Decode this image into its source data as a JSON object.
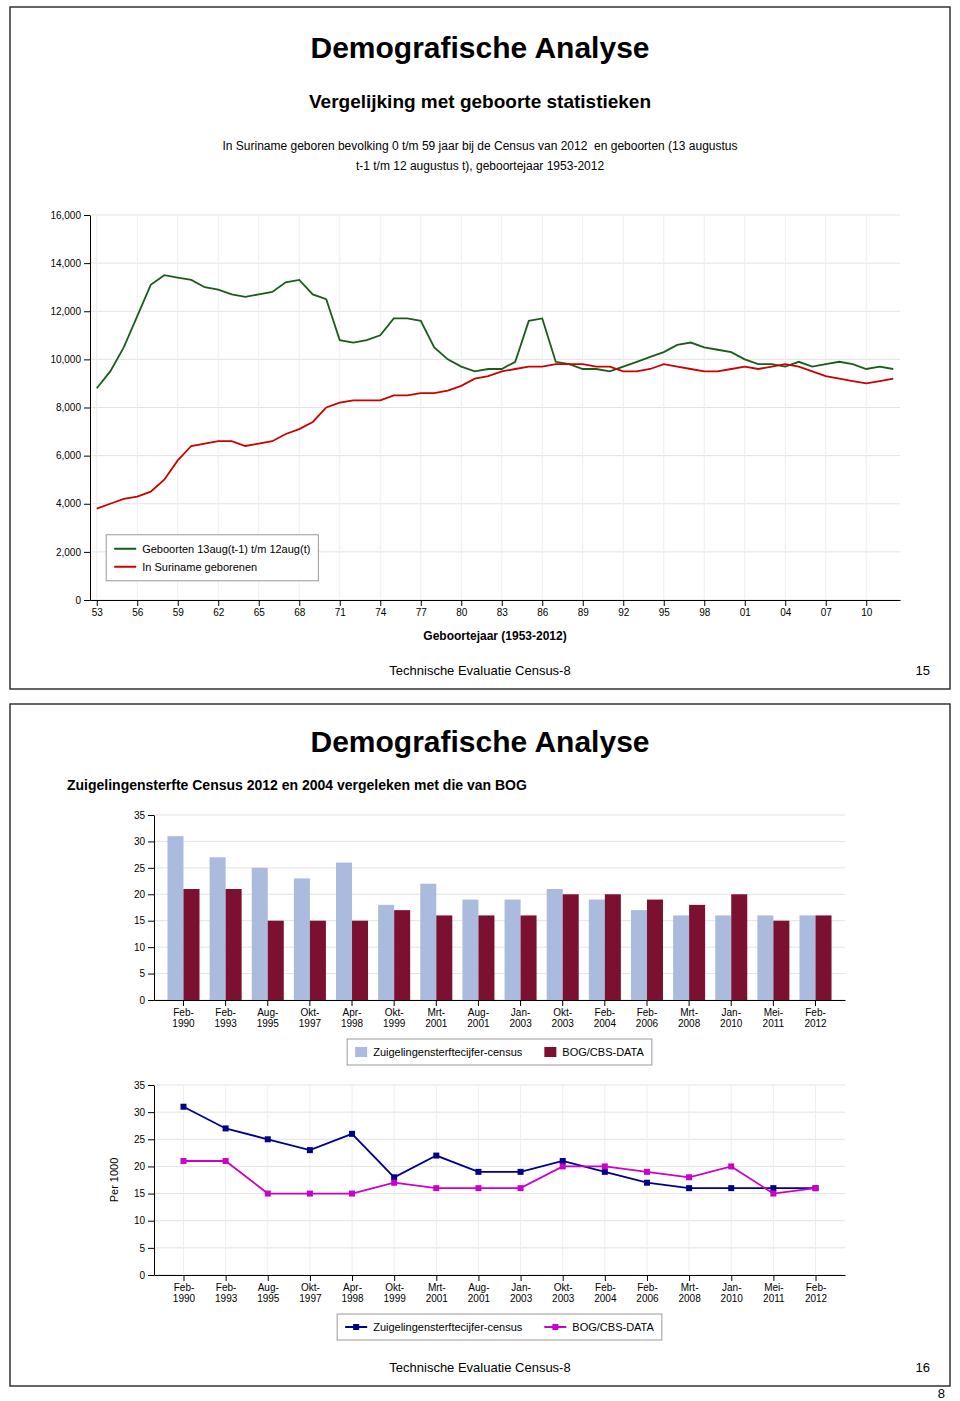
{
  "chart_data": [
    {
      "type": "line",
      "title": "Demografische Analyse",
      "subtitle": "Vergelijking met geboorte statistieken",
      "annotations": [
        "In Suriname geboren bevolking 0 t/m 59 jaar bij de Census van 2012  en geboorten (13 augustus",
        "t-1 t/m 12 augustus t), geboortejaar 1953-2012",
        "Technische Evaluatie Census-8",
        "15"
      ],
      "xlabel": "Geboortejaar (1953-2012)",
      "categories": [
        "53",
        null,
        null,
        "56",
        null,
        null,
        "59",
        null,
        null,
        "62",
        null,
        null,
        "65",
        null,
        null,
        "68",
        null,
        null,
        "71",
        null,
        null,
        "74",
        null,
        null,
        "77",
        null,
        null,
        "80",
        null,
        null,
        "83",
        null,
        null,
        "86",
        null,
        null,
        "89",
        null,
        null,
        "92",
        null,
        null,
        "95",
        null,
        null,
        "98",
        null,
        null,
        "01",
        null,
        null,
        "04",
        null,
        null,
        "07",
        null,
        null,
        "10",
        null,
        null
      ],
      "series": [
        {
          "name": "Geboorten 13aug(t-1) t/m 12aug(t)",
          "color": "#1a5c1a",
          "values": [
            8800,
            9500,
            10500,
            11800,
            13100,
            13500,
            13400,
            13300,
            13000,
            12900,
            12700,
            12600,
            12700,
            12800,
            13200,
            13300,
            12700,
            12500,
            10800,
            10700,
            10800,
            11000,
            11700,
            11700,
            11600,
            10500,
            10000,
            9700,
            9500,
            9600,
            9600,
            9900,
            11600,
            11700,
            9900,
            9800,
            9600,
            9600,
            9500,
            9700,
            9900,
            10100,
            10300,
            10600,
            10700,
            10500,
            10400,
            10300,
            10000,
            9800,
            9800,
            9700,
            9900,
            9700,
            9800,
            9900,
            9800,
            9600,
            9700,
            9600
          ]
        },
        {
          "name": "In Suriname geborenen",
          "color": "#cc0000",
          "values": [
            3800,
            4000,
            4200,
            4300,
            4500,
            5000,
            5800,
            6400,
            6500,
            6600,
            6600,
            6400,
            6500,
            6600,
            6900,
            7100,
            7400,
            8000,
            8200,
            8300,
            8300,
            8300,
            8500,
            8500,
            8600,
            8600,
            8700,
            8900,
            9200,
            9300,
            9500,
            9600,
            9700,
            9700,
            9800,
            9800,
            9800,
            9700,
            9700,
            9500,
            9500,
            9600,
            9800,
            9700,
            9600,
            9500,
            9500,
            9600,
            9700,
            9600,
            9700,
            9800,
            9700,
            9500,
            9300,
            9200,
            9100,
            9000,
            9100,
            9200
          ]
        }
      ],
      "ylim": [
        0,
        16000
      ],
      "yticks": [
        0,
        {
          "value": 2000,
          "label": "2,000"
        },
        {
          "value": 4000,
          "label": "4,000"
        },
        {
          "value": 6000,
          "label": "6,000"
        },
        {
          "value": 8000,
          "label": "8,000"
        },
        {
          "value": 10000,
          "label": "10,000"
        },
        {
          "value": 12000,
          "label": "12,000"
        },
        {
          "value": 14000,
          "label": "14,000"
        },
        {
          "value": 16000,
          "label": "16,000"
        }
      ],
      "grid": true,
      "legend": "lower left"
    },
    {
      "type": "bar",
      "title": "Demografische Analyse",
      "subtitle": "Zuigelingensterfte Census 2012 en 2004 vergeleken met die van BOG",
      "annotations": [
        "Technische Evaluatie Census-8",
        "16"
      ],
      "categories": [
        "Feb-\n1990",
        "Feb-\n1993",
        "Aug-\n1995",
        "Okt-\n1997",
        "Apr-\n1998",
        "Okt-\n1999",
        "Mrt-\n2001",
        "Aug-\n2001",
        "Jan-\n2003",
        "Okt-\n2003",
        "Feb-\n2004",
        "Feb-\n2006",
        "Mrt-\n2008",
        "Jan-\n2010",
        "Mei-\n2011",
        "Feb-\n2012"
      ],
      "series": [
        {
          "name": "Zuigelingensterftecijfer-census",
          "color": "#aabbdd",
          "values": [
            31,
            27,
            25,
            23,
            26,
            18,
            22,
            19,
            19,
            21,
            19,
            17,
            16,
            16,
            16,
            16
          ]
        },
        {
          "name": "BOG/CBS-DATA",
          "color": "#7b1030",
          "values": [
            21,
            21,
            15,
            15,
            15,
            17,
            16,
            16,
            16,
            20,
            20,
            19,
            18,
            20,
            15,
            16
          ]
        }
      ],
      "ylim": [
        0,
        35
      ],
      "yticks": [
        0,
        5,
        10,
        15,
        20,
        25,
        30,
        35
      ],
      "grid": true,
      "legend": "bottom"
    },
    {
      "type": "line",
      "annotations": [
        "8"
      ],
      "ylabel": "Per 1000",
      "categories": [
        "Feb-\n1990",
        "Feb-\n1993",
        "Aug-\n1995",
        "Okt-\n1997",
        "Apr-\n1998",
        "Okt-\n1999",
        "Mrt-\n2001",
        "Aug-\n2001",
        "Jan-\n2003",
        "Okt-\n2003",
        "Feb-\n2004",
        "Feb-\n2006",
        "Mrt-\n2008",
        "Jan-\n2010",
        "Mei-\n2011",
        "Feb-\n2012"
      ],
      "series": [
        {
          "name": "Zuigelingensterftecijfer-census",
          "color": "#00008b",
          "marker": "square",
          "values": [
            31,
            27,
            25,
            23,
            26,
            18,
            22,
            19,
            19,
            21,
            19,
            17,
            16,
            16,
            16,
            16
          ]
        },
        {
          "name": "BOG/CBS-DATA",
          "color": "#cc00cc",
          "marker": "square",
          "values": [
            21,
            21,
            15,
            15,
            15,
            17,
            16,
            16,
            16,
            20,
            20,
            19,
            18,
            20,
            15,
            16
          ]
        }
      ],
      "ylim": [
        0,
        35
      ],
      "yticks": [
        0,
        5,
        10,
        15,
        20,
        25,
        30,
        35
      ],
      "grid": true,
      "legend": "bottom"
    }
  ]
}
